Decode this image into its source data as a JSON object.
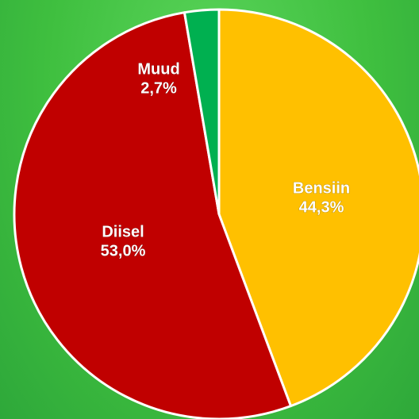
{
  "chart_data": {
    "type": "pie",
    "categories": [
      "Bensiin",
      "Diisel",
      "Muud"
    ],
    "values": [
      44.3,
      53.0,
      2.7
    ],
    "value_labels": [
      "44,3%",
      "53,0%",
      "2,7%"
    ],
    "colors": [
      "#ffc000",
      "#c00000",
      "#00b050"
    ]
  }
}
